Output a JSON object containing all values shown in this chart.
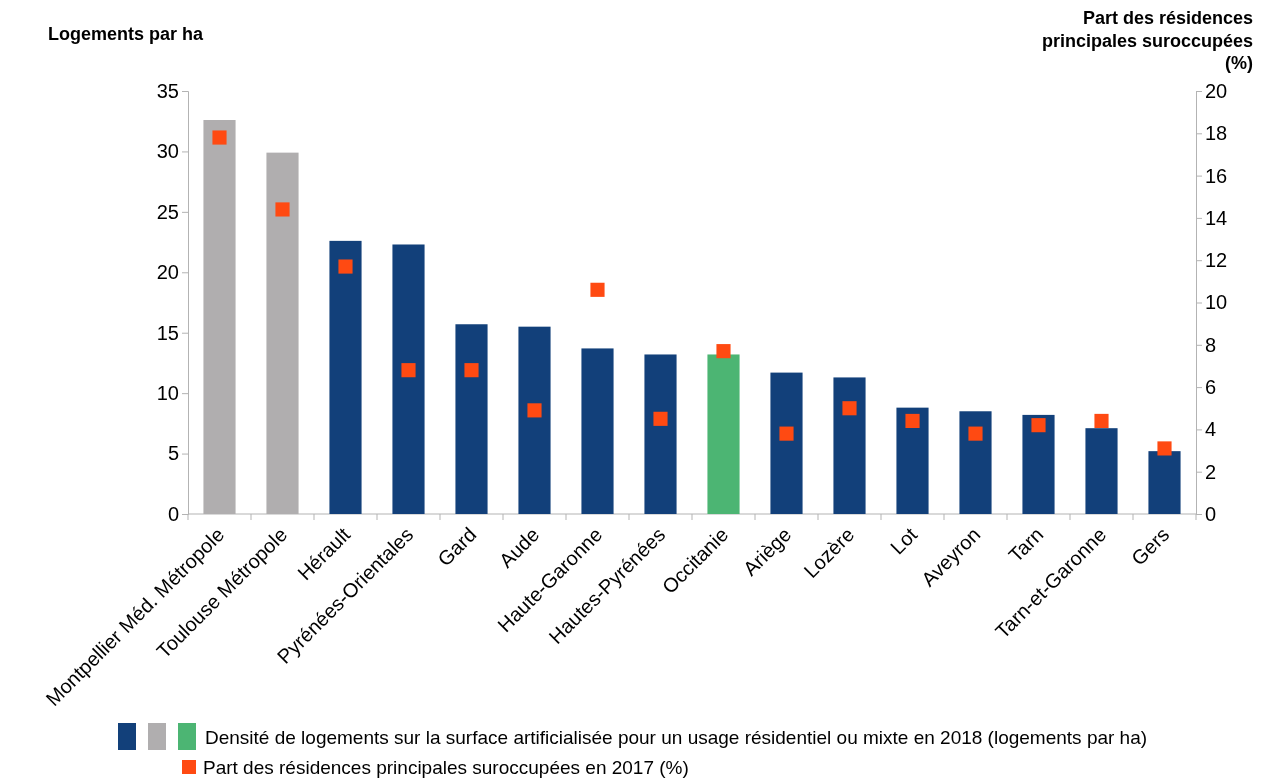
{
  "chart_data": {
    "type": "bar",
    "ylabel": "Logements par ha",
    "y2label": "Part des résidences principales suroccupées (%)",
    "categories": [
      "Montpellier Méd. Métropole",
      "Toulouse Métropole",
      "Hérault",
      "Pyrénées-Orientales",
      "Gard",
      "Aude",
      "Haute-Garonne",
      "Hautes-Pyrénées",
      "Occitanie",
      "Ariège",
      "Lozère",
      "Lot",
      "Aveyron",
      "Tarn",
      "Tarn-et-Garonne",
      "Gers"
    ],
    "series": [
      {
        "type": "bar",
        "name": "Densité de logements sur la surface artificialisée pour un usage résidentiel ou mixte en 2018 (logements par ha)",
        "colors": [
          "#b0aeaf",
          "#b0aeaf",
          "#12407a",
          "#12407a",
          "#12407a",
          "#12407a",
          "#12407a",
          "#12407a",
          "#4cb573",
          "#12407a",
          "#12407a",
          "#12407a",
          "#12407a",
          "#12407a",
          "#12407a",
          "#12407a"
        ],
        "values": [
          32.6,
          29.9,
          22.6,
          22.3,
          15.7,
          15.5,
          13.7,
          13.2,
          13.2,
          11.7,
          11.3,
          8.8,
          8.5,
          8.2,
          7.1,
          5.2
        ]
      },
      {
        "type": "scatter",
        "axis": "y2",
        "marker": "square",
        "name": "Part des résidences principales suroccupées en 2017 (%)",
        "color": "#ff4a12",
        "values": [
          17.8,
          14.4,
          11.7,
          6.8,
          6.8,
          4.9,
          10.6,
          4.5,
          7.7,
          3.8,
          5.0,
          4.4,
          3.8,
          4.2,
          4.4,
          3.1
        ]
      }
    ],
    "ylim": [
      0,
      35
    ],
    "yticks": [
      0,
      5,
      10,
      15,
      20,
      25,
      30,
      35
    ],
    "y2lim": [
      0,
      20
    ],
    "y2ticks": [
      0,
      2,
      4,
      6,
      8,
      10,
      12,
      14,
      16,
      18,
      20
    ],
    "grid": false,
    "legend": "bottom"
  }
}
